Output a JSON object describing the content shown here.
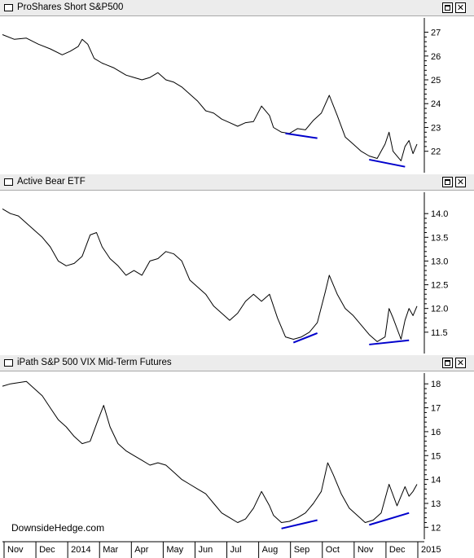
{
  "chart_data": [
    {
      "type": "line",
      "title": "ProShares Short S&P500",
      "yticks": [
        "27",
        "26",
        "25",
        "24",
        "23",
        "22"
      ],
      "ylim": [
        21.1,
        27.6
      ],
      "trend_color": "#0000cc",
      "points": [
        [
          0,
          26.9
        ],
        [
          1.5,
          26.7
        ],
        [
          3,
          26.75
        ],
        [
          4.5,
          26.5
        ],
        [
          6,
          26.3
        ],
        [
          7.5,
          26.05
        ],
        [
          8.5,
          26.2
        ],
        [
          9.5,
          26.4
        ],
        [
          10,
          26.7
        ],
        [
          10.7,
          26.5
        ],
        [
          11.5,
          25.9
        ],
        [
          12.5,
          25.7
        ],
        [
          14,
          25.5
        ],
        [
          15.5,
          25.2
        ],
        [
          16.5,
          25.1
        ],
        [
          17.5,
          25.0
        ],
        [
          18.5,
          25.1
        ],
        [
          19.5,
          25.3
        ],
        [
          20.5,
          25.0
        ],
        [
          21.5,
          24.9
        ],
        [
          22.5,
          24.7
        ],
        [
          23.5,
          24.4
        ],
        [
          24.5,
          24.1
        ],
        [
          25.5,
          23.7
        ],
        [
          26.5,
          23.6
        ],
        [
          27.5,
          23.35
        ],
        [
          28.5,
          23.2
        ],
        [
          29.5,
          23.05
        ],
        [
          30.5,
          23.2
        ],
        [
          31.5,
          23.25
        ],
        [
          32.5,
          23.9
        ],
        [
          33.5,
          23.5
        ],
        [
          34,
          23.0
        ],
        [
          35,
          22.8
        ],
        [
          36,
          22.75
        ],
        [
          37,
          22.95
        ],
        [
          38,
          22.9
        ],
        [
          39,
          23.3
        ],
        [
          40,
          23.6
        ],
        [
          41,
          24.35
        ],
        [
          42,
          23.5
        ],
        [
          43,
          22.6
        ],
        [
          44,
          22.3
        ],
        [
          45,
          22.0
        ],
        [
          46,
          21.8
        ],
        [
          47,
          21.7
        ],
        [
          48,
          22.3
        ],
        [
          48.5,
          22.8
        ],
        [
          49,
          22.0
        ],
        [
          50,
          21.6
        ],
        [
          50.5,
          22.2
        ],
        [
          51,
          22.45
        ],
        [
          51.5,
          21.9
        ],
        [
          52,
          22.3
        ]
      ],
      "trendlines": [
        [
          [
            35.5,
            22.75
          ],
          [
            39.5,
            22.55
          ]
        ],
        [
          [
            46,
            21.65
          ],
          [
            50.5,
            21.35
          ]
        ]
      ]
    },
    {
      "type": "line",
      "title": "Active Bear ETF",
      "yticks": [
        "14.0",
        "13.5",
        "13.0",
        "12.5",
        "12.0",
        "11.5"
      ],
      "ylim": [
        11.05,
        14.45
      ],
      "trend_color": "#0000cc",
      "points": [
        [
          0,
          14.1
        ],
        [
          1,
          14.0
        ],
        [
          2,
          13.95
        ],
        [
          3,
          13.8
        ],
        [
          4,
          13.65
        ],
        [
          5,
          13.5
        ],
        [
          6,
          13.3
        ],
        [
          7,
          13.0
        ],
        [
          8,
          12.9
        ],
        [
          9,
          12.95
        ],
        [
          10,
          13.1
        ],
        [
          11,
          13.55
        ],
        [
          11.8,
          13.6
        ],
        [
          12.5,
          13.3
        ],
        [
          13.5,
          13.05
        ],
        [
          14.5,
          12.9
        ],
        [
          15.5,
          12.7
        ],
        [
          16.5,
          12.8
        ],
        [
          17.5,
          12.7
        ],
        [
          18.5,
          13.0
        ],
        [
          19.5,
          13.05
        ],
        [
          20.5,
          13.2
        ],
        [
          21.5,
          13.15
        ],
        [
          22.5,
          13.0
        ],
        [
          23.5,
          12.6
        ],
        [
          24.5,
          12.45
        ],
        [
          25.5,
          12.3
        ],
        [
          26.5,
          12.05
        ],
        [
          27.5,
          11.9
        ],
        [
          28.5,
          11.75
        ],
        [
          29.5,
          11.9
        ],
        [
          30.5,
          12.15
        ],
        [
          31.5,
          12.3
        ],
        [
          32.5,
          12.15
        ],
        [
          33.5,
          12.3
        ],
        [
          34.5,
          11.8
        ],
        [
          35.5,
          11.4
        ],
        [
          36.5,
          11.35
        ],
        [
          37.5,
          11.4
        ],
        [
          38.5,
          11.5
        ],
        [
          39.5,
          11.7
        ],
        [
          40.5,
          12.35
        ],
        [
          41,
          12.7
        ],
        [
          42,
          12.3
        ],
        [
          43,
          12.0
        ],
        [
          44,
          11.85
        ],
        [
          45,
          11.65
        ],
        [
          46,
          11.45
        ],
        [
          47,
          11.3
        ],
        [
          48,
          11.4
        ],
        [
          48.5,
          12.0
        ],
        [
          49,
          11.8
        ],
        [
          50,
          11.35
        ],
        [
          50.5,
          11.75
        ],
        [
          51,
          12.0
        ],
        [
          51.5,
          11.85
        ],
        [
          52,
          12.05
        ]
      ],
      "trendlines": [
        [
          [
            36.5,
            11.28
          ],
          [
            39.5,
            11.48
          ]
        ],
        [
          [
            46,
            11.24
          ],
          [
            51,
            11.33
          ]
        ]
      ]
    },
    {
      "type": "line",
      "title": "iPath S&P 500 VIX Mid-Term Futures",
      "yticks": [
        "18",
        "17",
        "16",
        "15",
        "14",
        "13",
        "12"
      ],
      "ylim": [
        11.5,
        18.45
      ],
      "trend_color": "#0000cc",
      "points": [
        [
          0,
          17.9
        ],
        [
          1,
          18.0
        ],
        [
          2,
          18.05
        ],
        [
          3,
          18.1
        ],
        [
          4,
          17.8
        ],
        [
          5,
          17.5
        ],
        [
          6,
          17.0
        ],
        [
          7,
          16.5
        ],
        [
          8,
          16.2
        ],
        [
          9,
          15.8
        ],
        [
          10,
          15.5
        ],
        [
          11,
          15.6
        ],
        [
          12,
          16.5
        ],
        [
          12.7,
          17.1
        ],
        [
          13.5,
          16.2
        ],
        [
          14.5,
          15.5
        ],
        [
          15.5,
          15.2
        ],
        [
          16.5,
          15.0
        ],
        [
          17.5,
          14.8
        ],
        [
          18.5,
          14.6
        ],
        [
          19.5,
          14.7
        ],
        [
          20.5,
          14.6
        ],
        [
          21.5,
          14.3
        ],
        [
          22.5,
          14.0
        ],
        [
          23.5,
          13.8
        ],
        [
          24.5,
          13.6
        ],
        [
          25.5,
          13.4
        ],
        [
          26.5,
          13.0
        ],
        [
          27.5,
          12.6
        ],
        [
          28.5,
          12.4
        ],
        [
          29.5,
          12.2
        ],
        [
          30.5,
          12.35
        ],
        [
          31.5,
          12.8
        ],
        [
          32.5,
          13.5
        ],
        [
          33.5,
          12.9
        ],
        [
          34,
          12.5
        ],
        [
          35,
          12.2
        ],
        [
          36,
          12.25
        ],
        [
          37,
          12.4
        ],
        [
          38,
          12.6
        ],
        [
          39,
          13.0
        ],
        [
          40,
          13.5
        ],
        [
          40.8,
          14.7
        ],
        [
          41.5,
          14.2
        ],
        [
          42.5,
          13.4
        ],
        [
          43.5,
          12.8
        ],
        [
          44.5,
          12.5
        ],
        [
          45.5,
          12.2
        ],
        [
          46.5,
          12.3
        ],
        [
          47.5,
          12.6
        ],
        [
          48.5,
          13.8
        ],
        [
          49.5,
          12.9
        ],
        [
          50.5,
          13.7
        ],
        [
          51,
          13.3
        ],
        [
          51.5,
          13.5
        ],
        [
          52,
          13.8
        ]
      ],
      "trendlines": [
        [
          [
            35,
            11.95
          ],
          [
            39.5,
            12.3
          ]
        ],
        [
          [
            46,
            12.1
          ],
          [
            51,
            12.6
          ]
        ]
      ]
    }
  ],
  "x_axis": {
    "labels": [
      "Nov",
      "Dec",
      "2014",
      "Mar",
      "Apr",
      "May",
      "Jun",
      "Jul",
      "Aug",
      "Sep",
      "Oct",
      "Nov",
      "Dec",
      "2015"
    ]
  },
  "watermark": "DownsideHedge.com",
  "panel_buttons": {
    "max_icon": "maximize-icon",
    "close_icon": "close-icon",
    "close_glyph": "✕"
  }
}
